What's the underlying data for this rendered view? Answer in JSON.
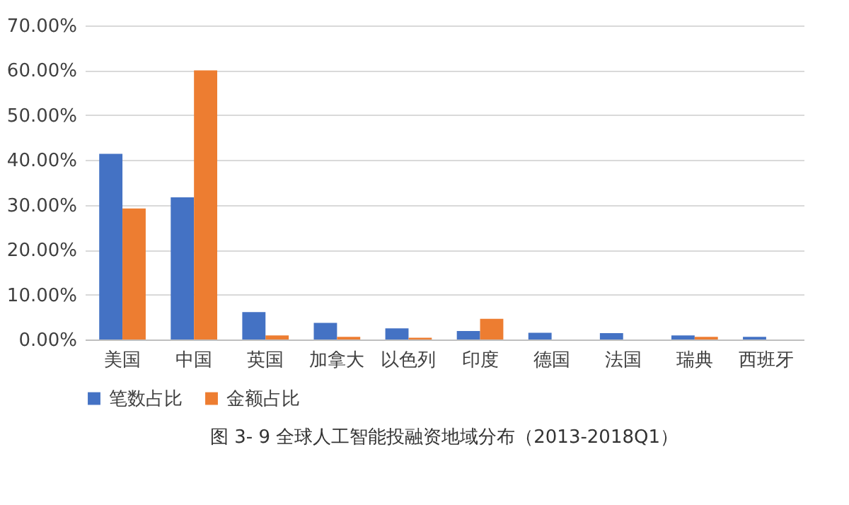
{
  "chart_data": {
    "type": "bar",
    "title": "图 3- 9  全球人工智能投融资地域分布（2013-2018Q1）",
    "categories": [
      "美国",
      "中国",
      "英国",
      "加拿大",
      "以色列",
      "印度",
      "德国",
      "法国",
      "瑞典",
      "西班牙"
    ],
    "series": [
      {
        "name": "笔数占比",
        "color": "#4472c4",
        "values": [
          41.4,
          31.7,
          6.1,
          3.7,
          2.5,
          1.9,
          1.5,
          1.4,
          0.9,
          0.6
        ]
      },
      {
        "name": "金额占比",
        "color": "#ed7d31",
        "values": [
          29.2,
          60,
          0.9,
          0.6,
          0.4,
          4.6,
          0,
          0,
          0.6,
          0
        ]
      }
    ],
    "ylim": [
      0,
      70
    ],
    "yticks": [
      {
        "value": 0,
        "label": "0.00%"
      },
      {
        "value": 10,
        "label": "10.00%"
      },
      {
        "value": 20,
        "label": "20.00%"
      },
      {
        "value": 30,
        "label": "30.00%"
      },
      {
        "value": 40,
        "label": "40.00%"
      },
      {
        "value": 50,
        "label": "50.00%"
      },
      {
        "value": 60,
        "label": "60.00%"
      },
      {
        "value": 70,
        "label": "70.00%"
      }
    ],
    "grid": "y",
    "legend": "bottom"
  }
}
